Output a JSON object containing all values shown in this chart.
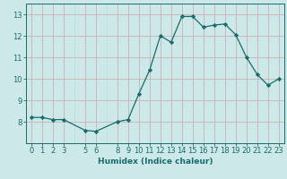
{
  "x": [
    0,
    1,
    2,
    3,
    5,
    6,
    8,
    9,
    10,
    11,
    12,
    13,
    14,
    15,
    16,
    17,
    18,
    19,
    20,
    21,
    22,
    23
  ],
  "y": [
    8.2,
    8.2,
    8.1,
    8.1,
    7.6,
    7.55,
    8.0,
    8.1,
    9.3,
    10.4,
    12.0,
    11.7,
    12.9,
    12.9,
    12.4,
    12.5,
    12.55,
    12.05,
    11.0,
    10.2,
    9.7,
    10.0
  ],
  "xlabel": "Humidex (Indice chaleur)",
  "xlim": [
    -0.5,
    23.5
  ],
  "ylim": [
    7.0,
    13.5
  ],
  "yticks": [
    8,
    9,
    10,
    11,
    12,
    13
  ],
  "xticks": [
    0,
    1,
    2,
    3,
    5,
    6,
    8,
    9,
    10,
    11,
    12,
    13,
    14,
    15,
    16,
    17,
    18,
    19,
    20,
    21,
    22,
    23
  ],
  "line_color": "#1a6b6b",
  "marker": "D",
  "marker_size": 2.2,
  "bg_color": "#cce8e8",
  "grid_minor_color": "#b8d8d8",
  "grid_major_color": "#c8a8a8",
  "label_fontsize": 6.5,
  "tick_fontsize": 6.0
}
